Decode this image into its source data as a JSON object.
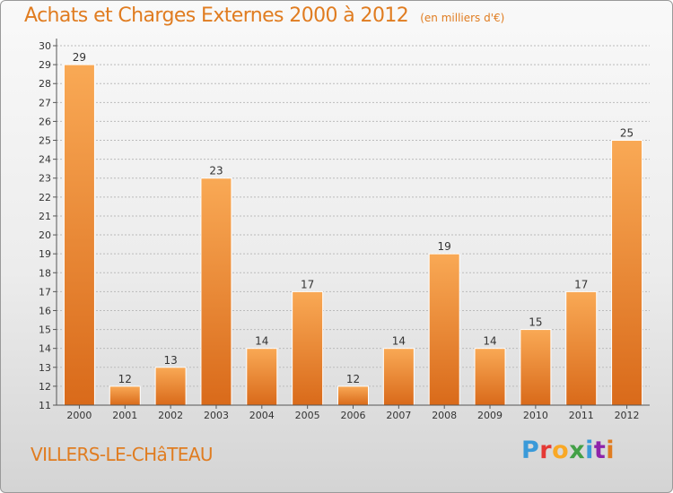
{
  "title": {
    "main": "Achats et Charges Externes 2000 à 2012",
    "sub": "(en milliers d'€)"
  },
  "location": "VILLERS-LE-CHâTEAU",
  "logo": {
    "text": "Proxiti",
    "colors": [
      "#3a9ad9",
      "#e53935",
      "#f9a825",
      "#43a047",
      "#3a9ad9",
      "#8e24aa",
      "#e07c20"
    ]
  },
  "colors": {
    "bar_light": "#f9a955",
    "bar_dark": "#d96a1a",
    "title": "#e07c20",
    "grid": "#bbbbbb"
  },
  "chart_data": {
    "type": "bar",
    "categories": [
      "2000",
      "2001",
      "2002",
      "2003",
      "2004",
      "2005",
      "2006",
      "2007",
      "2008",
      "2009",
      "2010",
      "2011",
      "2012"
    ],
    "values": [
      29,
      12,
      13,
      23,
      14,
      17,
      12,
      14,
      19,
      14,
      15,
      17,
      25
    ],
    "title": "Achats et Charges Externes 2000 à 2012",
    "subtitle": "(en milliers d'€)",
    "xlabel": "",
    "ylabel": "",
    "ylim": [
      11,
      30
    ],
    "yticks": [
      11,
      12,
      13,
      14,
      15,
      16,
      17,
      18,
      19,
      20,
      21,
      22,
      23,
      24,
      25,
      26,
      27,
      28,
      29,
      30
    ],
    "grid": true,
    "legend": "none"
  }
}
